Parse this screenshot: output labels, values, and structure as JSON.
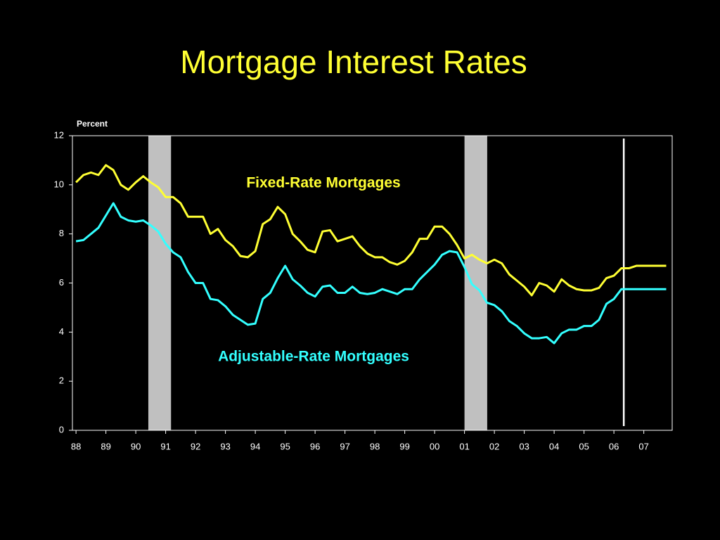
{
  "chart_data": {
    "type": "line",
    "title": "Mortgage Interest Rates",
    "y_label": "Percent",
    "x": [
      1988,
      1988.25,
      1988.5,
      1988.75,
      1989,
      1989.25,
      1989.5,
      1989.75,
      1990,
      1990.25,
      1990.5,
      1990.75,
      1991,
      1991.25,
      1991.5,
      1991.75,
      1992,
      1992.25,
      1992.5,
      1992.75,
      1993,
      1993.25,
      1993.5,
      1993.75,
      1994,
      1994.25,
      1994.5,
      1994.75,
      1995,
      1995.25,
      1995.5,
      1995.75,
      1996,
      1996.25,
      1996.5,
      1996.75,
      1997,
      1997.25,
      1997.5,
      1997.75,
      1998,
      1998.25,
      1998.5,
      1998.75,
      1999,
      1999.25,
      1999.5,
      1999.75,
      2000,
      2000.25,
      2000.5,
      2000.75,
      2001,
      2001.25,
      2001.5,
      2001.75,
      2002,
      2002.25,
      2002.5,
      2002.75,
      2003,
      2003.25,
      2003.5,
      2003.75,
      2004,
      2004.25,
      2004.5,
      2004.75,
      2005,
      2005.25,
      2005.5,
      2005.75,
      2006,
      2006.25,
      2006.5,
      2006.75,
      2007,
      2007.25,
      2007.5,
      2007.75
    ],
    "series": [
      {
        "name": "Fixed-Rate Mortgages",
        "color": "#ffff33",
        "values": [
          10.1,
          10.4,
          10.5,
          10.4,
          10.8,
          10.6,
          10.0,
          9.8,
          10.1,
          10.35,
          10.1,
          9.9,
          9.5,
          9.5,
          9.25,
          8.7,
          8.7,
          8.7,
          8.0,
          8.2,
          7.75,
          7.5,
          7.1,
          7.05,
          7.3,
          8.4,
          8.6,
          9.1,
          8.8,
          8.0,
          7.7,
          7.35,
          7.25,
          8.1,
          8.15,
          7.7,
          7.8,
          7.9,
          7.5,
          7.2,
          7.05,
          7.05,
          6.85,
          6.75,
          6.9,
          7.25,
          7.8,
          7.8,
          8.3,
          8.3,
          8.0,
          7.55,
          7.0,
          7.15,
          6.95,
          6.8,
          6.95,
          6.8,
          6.35,
          6.1,
          5.85,
          5.5,
          6.0,
          5.9,
          5.65,
          6.15,
          5.9,
          5.75,
          5.7,
          5.7,
          5.8,
          6.2,
          6.3,
          6.6,
          6.6,
          6.7,
          6.7,
          6.7,
          6.7,
          6.7
        ]
      },
      {
        "name": "Adjustable-Rate Mortgages",
        "color": "#33ffff",
        "values": [
          7.7,
          7.75,
          8.0,
          8.25,
          8.75,
          9.25,
          8.7,
          8.55,
          8.5,
          8.55,
          8.35,
          8.1,
          7.6,
          7.25,
          7.05,
          6.45,
          6.0,
          6.0,
          5.35,
          5.3,
          5.05,
          4.7,
          4.5,
          4.3,
          4.35,
          5.35,
          5.6,
          6.2,
          6.7,
          6.15,
          5.9,
          5.6,
          5.45,
          5.85,
          5.9,
          5.6,
          5.6,
          5.85,
          5.6,
          5.55,
          5.6,
          5.75,
          5.65,
          5.55,
          5.75,
          5.75,
          6.15,
          6.45,
          6.75,
          7.15,
          7.3,
          7.25,
          6.65,
          5.95,
          5.7,
          5.2,
          5.1,
          4.85,
          4.45,
          4.25,
          3.95,
          3.75,
          3.75,
          3.8,
          3.55,
          3.95,
          4.1,
          4.1,
          4.25,
          4.25,
          4.5,
          5.15,
          5.35,
          5.75,
          5.75,
          5.75,
          5.75,
          5.75,
          5.75,
          5.75
        ]
      }
    ],
    "shaded_ranges": [
      [
        1990.42,
        1991.18
      ],
      [
        2001.0,
        2001.76
      ]
    ],
    "shade_color": "#c0c0c0",
    "vertical_line_x": 2006.33,
    "xlim": [
      1987.88,
      2007.95
    ],
    "xticks": [
      {
        "value": 1988,
        "label": "88"
      },
      {
        "value": 1989,
        "label": "89"
      },
      {
        "value": 1990,
        "label": "90"
      },
      {
        "value": 1991,
        "label": "91"
      },
      {
        "value": 1992,
        "label": "92"
      },
      {
        "value": 1993,
        "label": "93"
      },
      {
        "value": 1994,
        "label": "94"
      },
      {
        "value": 1995,
        "label": "95"
      },
      {
        "value": 1996,
        "label": "96"
      },
      {
        "value": 1997,
        "label": "97"
      },
      {
        "value": 1998,
        "label": "98"
      },
      {
        "value": 1999,
        "label": "99"
      },
      {
        "value": 2000,
        "label": "00"
      },
      {
        "value": 2001,
        "label": "01"
      },
      {
        "value": 2002,
        "label": "02"
      },
      {
        "value": 2003,
        "label": "03"
      },
      {
        "value": 2004,
        "label": "04"
      },
      {
        "value": 2005,
        "label": "05"
      },
      {
        "value": 2006,
        "label": "06"
      },
      {
        "value": 2007,
        "label": "07"
      }
    ],
    "ylim": [
      0,
      12
    ],
    "yticks": [
      0,
      2,
      4,
      6,
      8,
      10,
      12
    ]
  }
}
